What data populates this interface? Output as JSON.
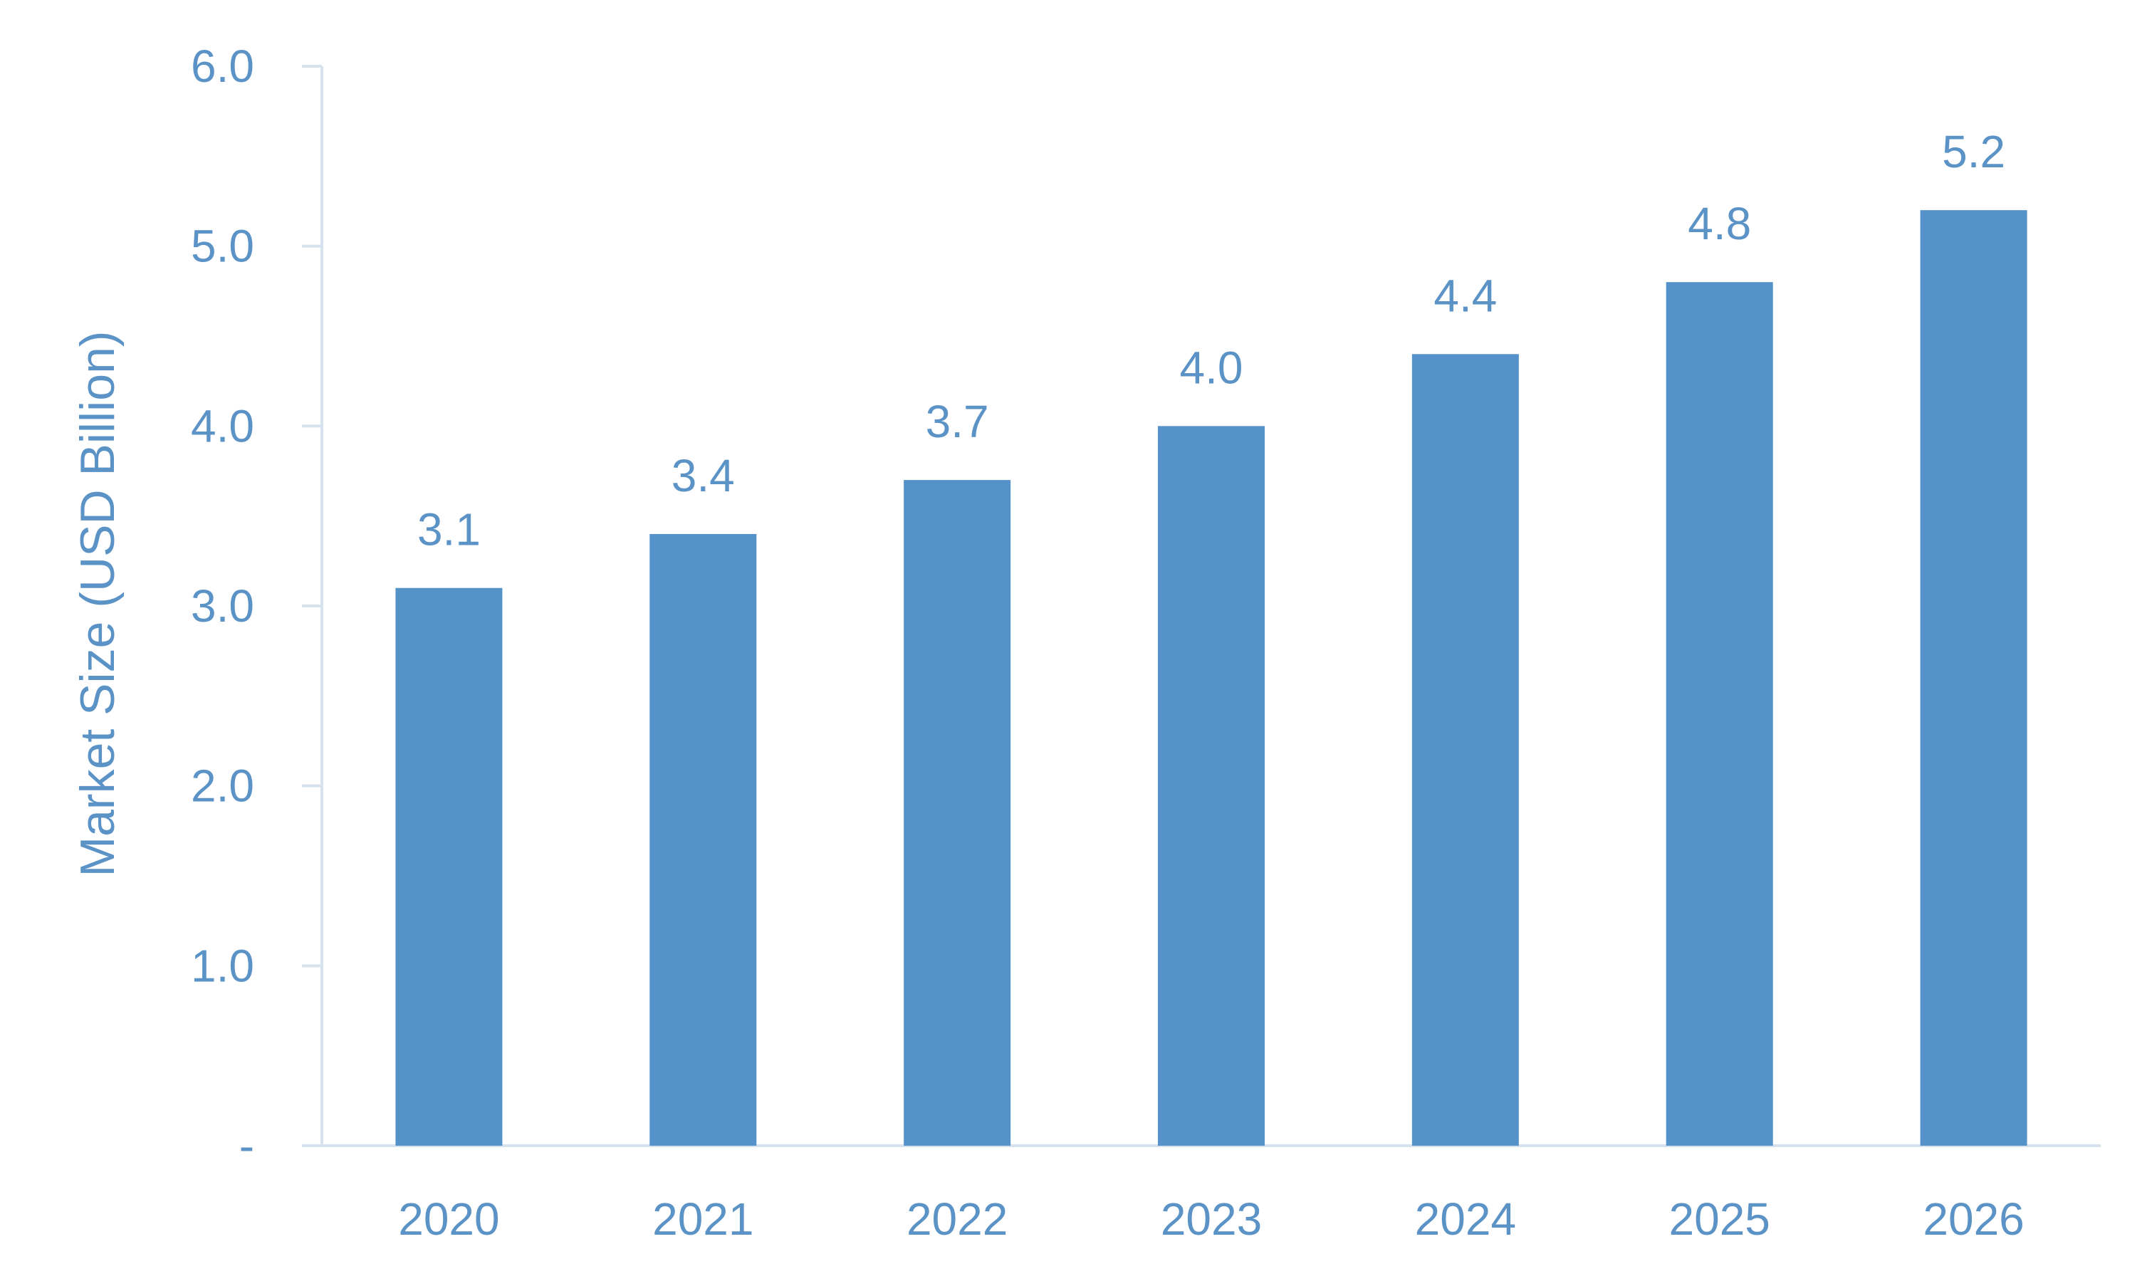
{
  "colors": {
    "bar": "#5592c9",
    "text": "#5b93c7",
    "axis": "#d6e2ee",
    "background": "#ffffff"
  },
  "chart_data": {
    "type": "bar",
    "title": "",
    "xlabel": "",
    "ylabel": "Market Size (USD Billion)",
    "categories": [
      "2020",
      "2021",
      "2022",
      "2023",
      "2024",
      "2025",
      "2026"
    ],
    "values": [
      3.1,
      3.4,
      3.7,
      4.0,
      4.4,
      4.8,
      5.2
    ],
    "data_labels": [
      "3.1",
      "3.4",
      "3.7",
      "4.0",
      "4.4",
      "4.8",
      "5.2"
    ],
    "ylim": [
      0,
      6
    ],
    "yticks": [
      0,
      1,
      2,
      3,
      4,
      5,
      6
    ],
    "ytick_labels": [
      "-",
      "1.0",
      "2.0",
      "3.0",
      "4.0",
      "5.0",
      "6.0"
    ],
    "grid": false,
    "legend": "none"
  }
}
